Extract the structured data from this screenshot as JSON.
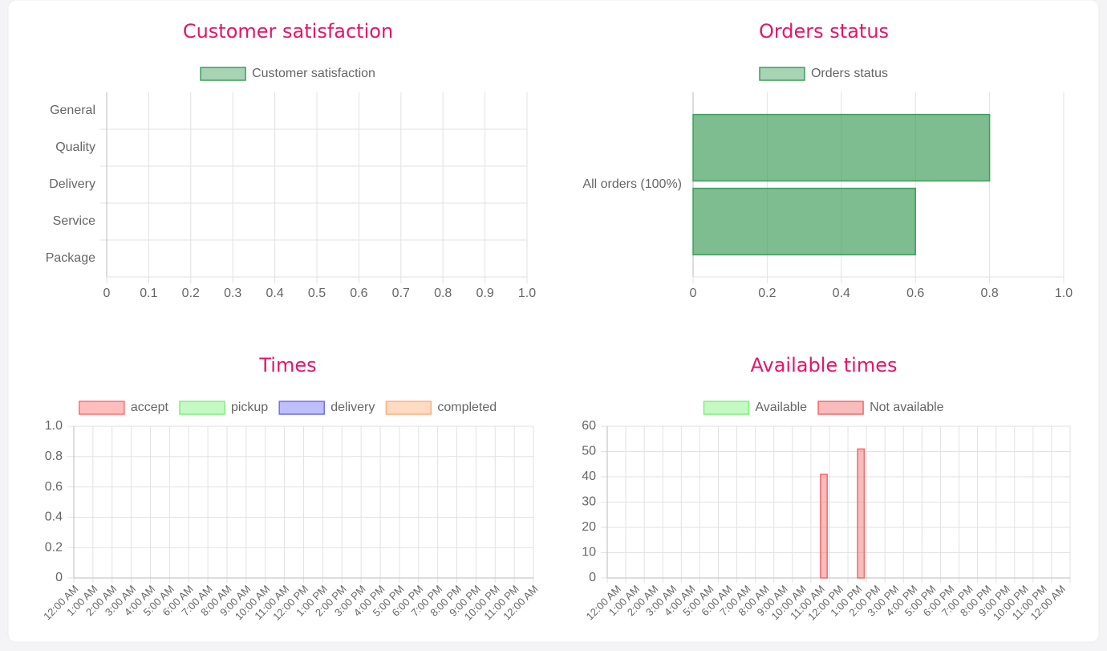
{
  "chart_data": [
    {
      "type": "bar",
      "orientation": "horizontal",
      "title": "Customer satisfaction",
      "categories": [
        "General",
        "Quality",
        "Delivery",
        "Service",
        "Package"
      ],
      "series": [
        {
          "name": "Customer satisfaction",
          "color": "#3f9e5a",
          "values": [
            null,
            null,
            null,
            null,
            null
          ]
        }
      ],
      "xlim": [
        0,
        1
      ],
      "xticks": [
        0,
        0.1,
        0.2,
        0.3,
        0.4,
        0.5,
        0.6,
        0.7,
        0.8,
        0.9,
        {
          "value": 1,
          "label": "1.0"
        }
      ],
      "grid": true
    },
    {
      "type": "bar",
      "orientation": "horizontal",
      "title": "Orders status",
      "categories": [
        "All orders (100%)"
      ],
      "series": [
        {
          "name": "Orders status",
          "color": "#3f9e5a",
          "values": [
            0.8
          ]
        },
        {
          "color": "#3f9e5a",
          "values": [
            0.6
          ]
        }
      ],
      "xlim": [
        0,
        1
      ],
      "xticks": [
        0,
        0.2,
        0.4,
        0.6,
        0.8,
        {
          "value": 1,
          "label": "1.0"
        }
      ],
      "grid": true
    },
    {
      "type": "line",
      "title": "Times",
      "categories": [
        "12:00 AM",
        "1:00 AM",
        "2:00 AM",
        "3:00 AM",
        "4:00 AM",
        "5:00 AM",
        "6:00 AM",
        "7:00 AM",
        "8:00 AM",
        "9:00 AM",
        "10:00 AM",
        "11:00 AM",
        "12:00 PM",
        "1:00 PM",
        "2:00 PM",
        "3:00 PM",
        "4:00 PM",
        "5:00 PM",
        "6:00 PM",
        "7:00 PM",
        "8:00 PM",
        "9:00 PM",
        "10:00 PM",
        "11:00 PM",
        "12:00 AM"
      ],
      "series": [
        {
          "name": "accept",
          "color": "#ff6f6f",
          "values": [
            null,
            null,
            null,
            null,
            null,
            null,
            null,
            null,
            null,
            null,
            null,
            null,
            null,
            null,
            null,
            null,
            null,
            null,
            null,
            null,
            null,
            null,
            null,
            null,
            null
          ]
        },
        {
          "name": "pickup",
          "color": "#7cf27c",
          "values": [
            null,
            null,
            null,
            null,
            null,
            null,
            null,
            null,
            null,
            null,
            null,
            null,
            null,
            null,
            null,
            null,
            null,
            null,
            null,
            null,
            null,
            null,
            null,
            null,
            null
          ]
        },
        {
          "name": "delivery",
          "color": "#6f6ff5",
          "values": [
            null,
            null,
            null,
            null,
            null,
            null,
            null,
            null,
            null,
            null,
            null,
            null,
            null,
            null,
            null,
            null,
            null,
            null,
            null,
            null,
            null,
            null,
            null,
            null,
            null
          ]
        },
        {
          "name": "completed",
          "color": "#ffaf7a",
          "values": [
            null,
            null,
            null,
            null,
            null,
            null,
            null,
            null,
            null,
            null,
            null,
            null,
            null,
            null,
            null,
            null,
            null,
            null,
            null,
            null,
            null,
            null,
            null,
            null,
            null
          ]
        }
      ],
      "ylim": [
        0,
        1
      ],
      "yticks": [
        0,
        0.2,
        0.4,
        0.6,
        0.8,
        {
          "value": 1,
          "label": "1.0"
        }
      ],
      "grid": true
    },
    {
      "type": "bar",
      "title": "Available times",
      "categories": [
        "12:00 AM",
        "1:00 AM",
        "2:00 AM",
        "3:00 AM",
        "4:00 AM",
        "5:00 AM",
        "6:00 AM",
        "7:00 AM",
        "8:00 AM",
        "9:00 AM",
        "10:00 AM",
        "11:00 AM",
        "12:00 PM",
        "1:00 PM",
        "2:00 PM",
        "3:00 PM",
        "4:00 PM",
        "5:00 PM",
        "6:00 PM",
        "7:00 PM",
        "8:00 PM",
        "9:00 PM",
        "10:00 PM",
        "11:00 PM",
        "12:00 AM"
      ],
      "series": [
        {
          "name": "Available",
          "color": "#7cf27c",
          "values": [
            null,
            null,
            null,
            null,
            null,
            null,
            null,
            null,
            null,
            null,
            null,
            null,
            null,
            null,
            null,
            null,
            null,
            null,
            null,
            null,
            null,
            null,
            null,
            null,
            null
          ]
        },
        {
          "name": "Not available",
          "color": "#f06a6a",
          "values": [
            null,
            null,
            null,
            null,
            null,
            null,
            null,
            null,
            null,
            null,
            null,
            41,
            null,
            51,
            null,
            null,
            null,
            null,
            null,
            null,
            null,
            null,
            null,
            null,
            null
          ]
        }
      ],
      "ylim": [
        0,
        60
      ],
      "yticks": [
        0,
        10,
        20,
        30,
        40,
        50,
        60
      ],
      "grid": true
    }
  ]
}
